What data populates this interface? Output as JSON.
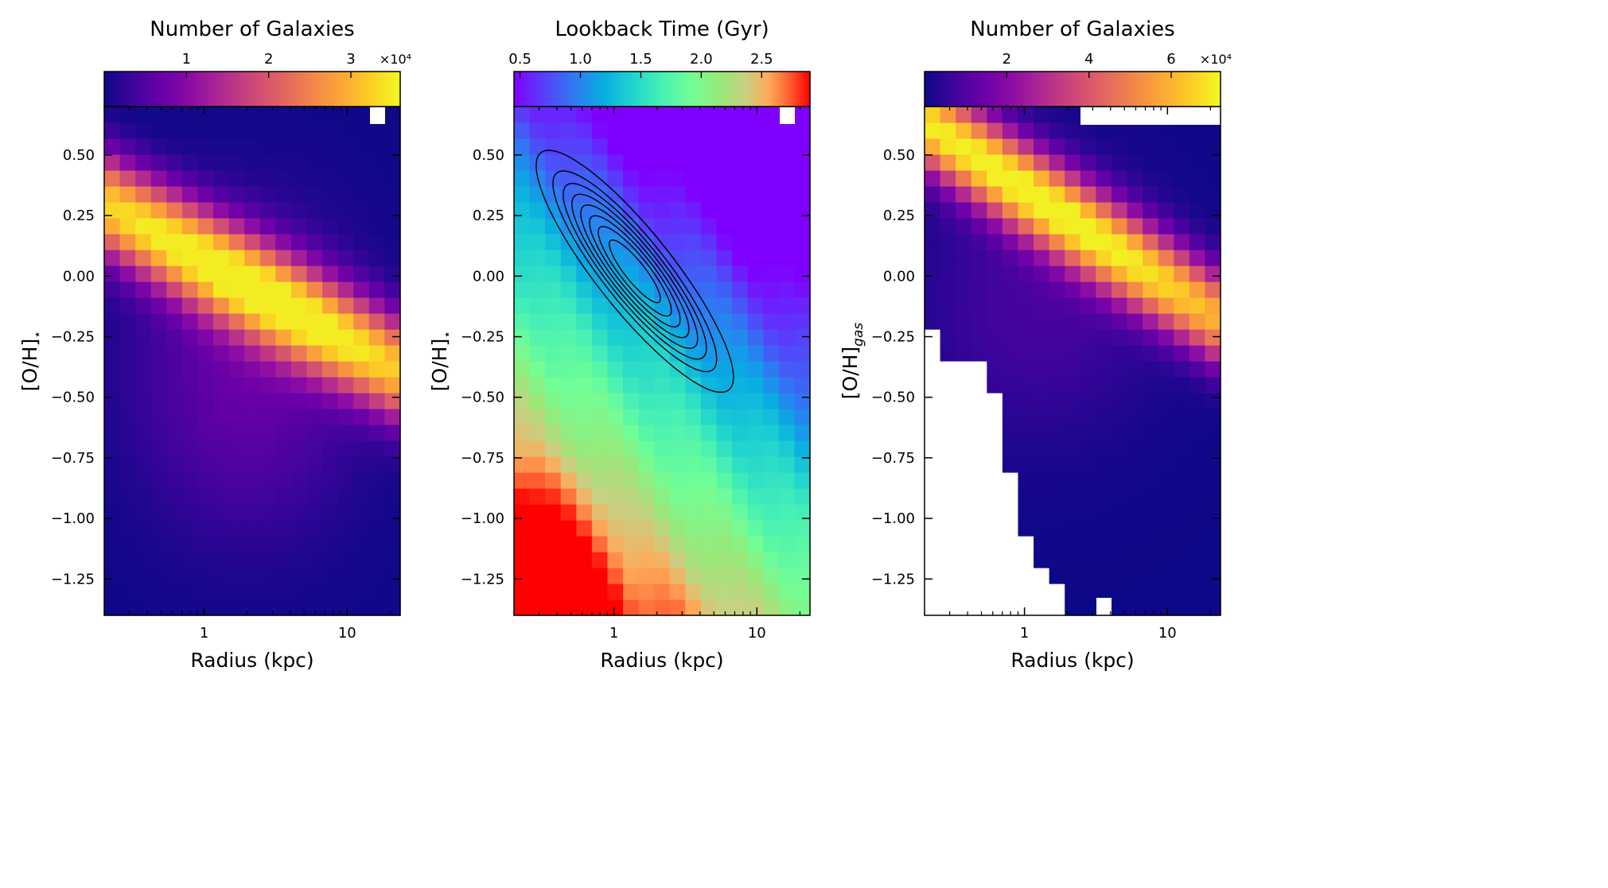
{
  "chart_data": [
    {
      "type": "heatmap",
      "panel": "left",
      "colorbar_label": "Number of Galaxies",
      "colormap": "plasma",
      "colorbar_ticks": [
        "1",
        "2",
        "3"
      ],
      "colorbar_tick_values": [
        10000,
        20000,
        30000
      ],
      "colorbar_range": [
        0,
        36000
      ],
      "colorbar_multiplier": "×10⁴",
      "xlabel": "Radius (kpc)",
      "ylabel": "[O/H]⋆",
      "xscale": "log",
      "xlim": [
        0.2,
        23.5
      ],
      "ylim": [
        -1.4,
        0.7
      ],
      "xticks": [
        "1",
        "10"
      ],
      "yticks": [
        "0.50",
        "0.25",
        "0.00",
        "−0.25",
        "−0.50",
        "−0.75",
        "−1.00",
        "−1.25"
      ],
      "peak": {
        "radius_kpc": 1.7,
        "oh": 0.0,
        "count": 35000
      },
      "description_of_distribution": "diagonal ridge from (0.5 kpc, 0.5) to (8 kpc, -0.4)"
    },
    {
      "type": "heatmap",
      "panel": "middle",
      "colorbar_label": "Lookback Time (Gyr)",
      "colormap": "rainbow",
      "colorbar_ticks": [
        "0.5",
        "1.0",
        "1.5",
        "2.0",
        "2.5"
      ],
      "colorbar_tick_values": [
        0.5,
        1.0,
        1.5,
        2.0,
        2.5
      ],
      "colorbar_range": [
        0.45,
        2.9
      ],
      "xlabel": "Radius (kpc)",
      "ylabel": "[O/H]⋆",
      "xscale": "log",
      "xlim": [
        0.2,
        23.5
      ],
      "ylim": [
        -1.4,
        0.7
      ],
      "xticks": [
        "1",
        "10"
      ],
      "yticks": [
        "0.50",
        "0.25",
        "0.00",
        "−0.25",
        "−0.50",
        "−0.75",
        "−1.00",
        "−1.25"
      ],
      "contours": "number-density contours centred near (1.4 kpc, 0.0)"
    },
    {
      "type": "heatmap",
      "panel": "right",
      "colorbar_label": "Number of Galaxies",
      "colormap": "plasma",
      "colorbar_ticks": [
        "2",
        "4",
        "6"
      ],
      "colorbar_tick_values": [
        20000,
        40000,
        60000
      ],
      "colorbar_range": [
        0,
        72000
      ],
      "colorbar_multiplier": "×10⁴",
      "xlabel": "Radius (kpc)",
      "ylabel": "[O/H]gas",
      "xscale": "log",
      "xlim": [
        0.2,
        23.5
      ],
      "ylim": [
        -1.4,
        0.7
      ],
      "xticks": [
        "1",
        "10"
      ],
      "yticks": [
        "0.50",
        "0.25",
        "0.00",
        "−0.25",
        "−0.50",
        "−0.75",
        "−1.00",
        "−1.25"
      ],
      "peak": {
        "radius_kpc": 0.8,
        "oh": 0.45,
        "count": 70000
      },
      "description_of_distribution": "diagonal ridge from (0.5 kpc, 0.5) to (6 kpc, -0.3); no data below a staircase boundary at low radius and low metallicity"
    }
  ]
}
